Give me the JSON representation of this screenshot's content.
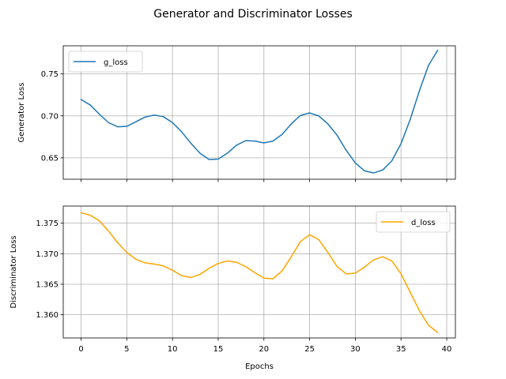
{
  "figure": {
    "suptitle": "Generator and Discriminator Losses"
  },
  "chart_data": [
    {
      "type": "line",
      "title": "",
      "xlabel": "",
      "ylabel": "Generator Loss",
      "xlim": [
        -1.95,
        40.95
      ],
      "ylim": [
        0.6245,
        0.7835
      ],
      "xticks": [
        0,
        5,
        10,
        15,
        20,
        25,
        30,
        35,
        40
      ],
      "yticks": [
        0.65,
        0.7,
        0.75
      ],
      "ytick_labels": [
        "0.65",
        "0.70",
        "0.75"
      ],
      "show_xtick_labels": false,
      "grid": true,
      "legend": "top-left",
      "series": [
        {
          "name": "g_loss",
          "color": "#1f77b4",
          "x": [
            0,
            1,
            2,
            3,
            4,
            5,
            6,
            7,
            8,
            9,
            10,
            11,
            12,
            13,
            14,
            15,
            16,
            17,
            18,
            19,
            20,
            21,
            22,
            23,
            24,
            25,
            26,
            27,
            28,
            29,
            30,
            31,
            32,
            33,
            34,
            35,
            36,
            37,
            38,
            39
          ],
          "y": [
            0.7195,
            0.713,
            0.702,
            0.692,
            0.687,
            0.6875,
            0.693,
            0.6985,
            0.701,
            0.699,
            0.692,
            0.681,
            0.6675,
            0.6555,
            0.648,
            0.6485,
            0.6555,
            0.665,
            0.6705,
            0.67,
            0.6678,
            0.67,
            0.678,
            0.6905,
            0.7005,
            0.7035,
            0.7,
            0.6905,
            0.677,
            0.659,
            0.644,
            0.6345,
            0.632,
            0.6355,
            0.6465,
            0.667,
            0.6955,
            0.7295,
            0.76,
            0.778
          ]
        }
      ]
    },
    {
      "type": "line",
      "title": "",
      "xlabel": "Epochs",
      "ylabel": "Discriminator Loss",
      "xlim": [
        -1.95,
        40.95
      ],
      "ylim": [
        1.3562,
        1.3778
      ],
      "xticks": [
        0,
        5,
        10,
        15,
        20,
        25,
        30,
        35,
        40
      ],
      "xtick_labels": [
        "0",
        "5",
        "10",
        "15",
        "20",
        "25",
        "30",
        "35",
        "40"
      ],
      "yticks": [
        1.36,
        1.365,
        1.37,
        1.375
      ],
      "ytick_labels": [
        "1.360",
        "1.365",
        "1.370",
        "1.375"
      ],
      "grid": true,
      "legend": "top-right",
      "series": [
        {
          "name": "d_loss",
          "color": "#ffa500",
          "x": [
            0,
            1,
            2,
            3,
            4,
            5,
            6,
            7,
            8,
            9,
            10,
            11,
            12,
            13,
            14,
            15,
            16,
            17,
            18,
            19,
            20,
            21,
            22,
            23,
            24,
            25,
            26,
            27,
            28,
            29,
            30,
            31,
            32,
            33,
            34,
            35,
            36,
            37,
            38,
            39
          ],
          "y": [
            1.3767,
            1.3763,
            1.3754,
            1.3737,
            1.3718,
            1.3702,
            1.3691,
            1.3685,
            1.3683,
            1.368,
            1.3673,
            1.3664,
            1.3661,
            1.3666,
            1.3676,
            1.3684,
            1.3688,
            1.3686,
            1.3679,
            1.3669,
            1.366,
            1.3659,
            1.3672,
            1.3695,
            1.372,
            1.3731,
            1.3723,
            1.3702,
            1.3679,
            1.3667,
            1.3668,
            1.3678,
            1.369,
            1.3695,
            1.3688,
            1.3667,
            1.3637,
            1.3607,
            1.3583,
            1.3571
          ]
        }
      ]
    }
  ]
}
